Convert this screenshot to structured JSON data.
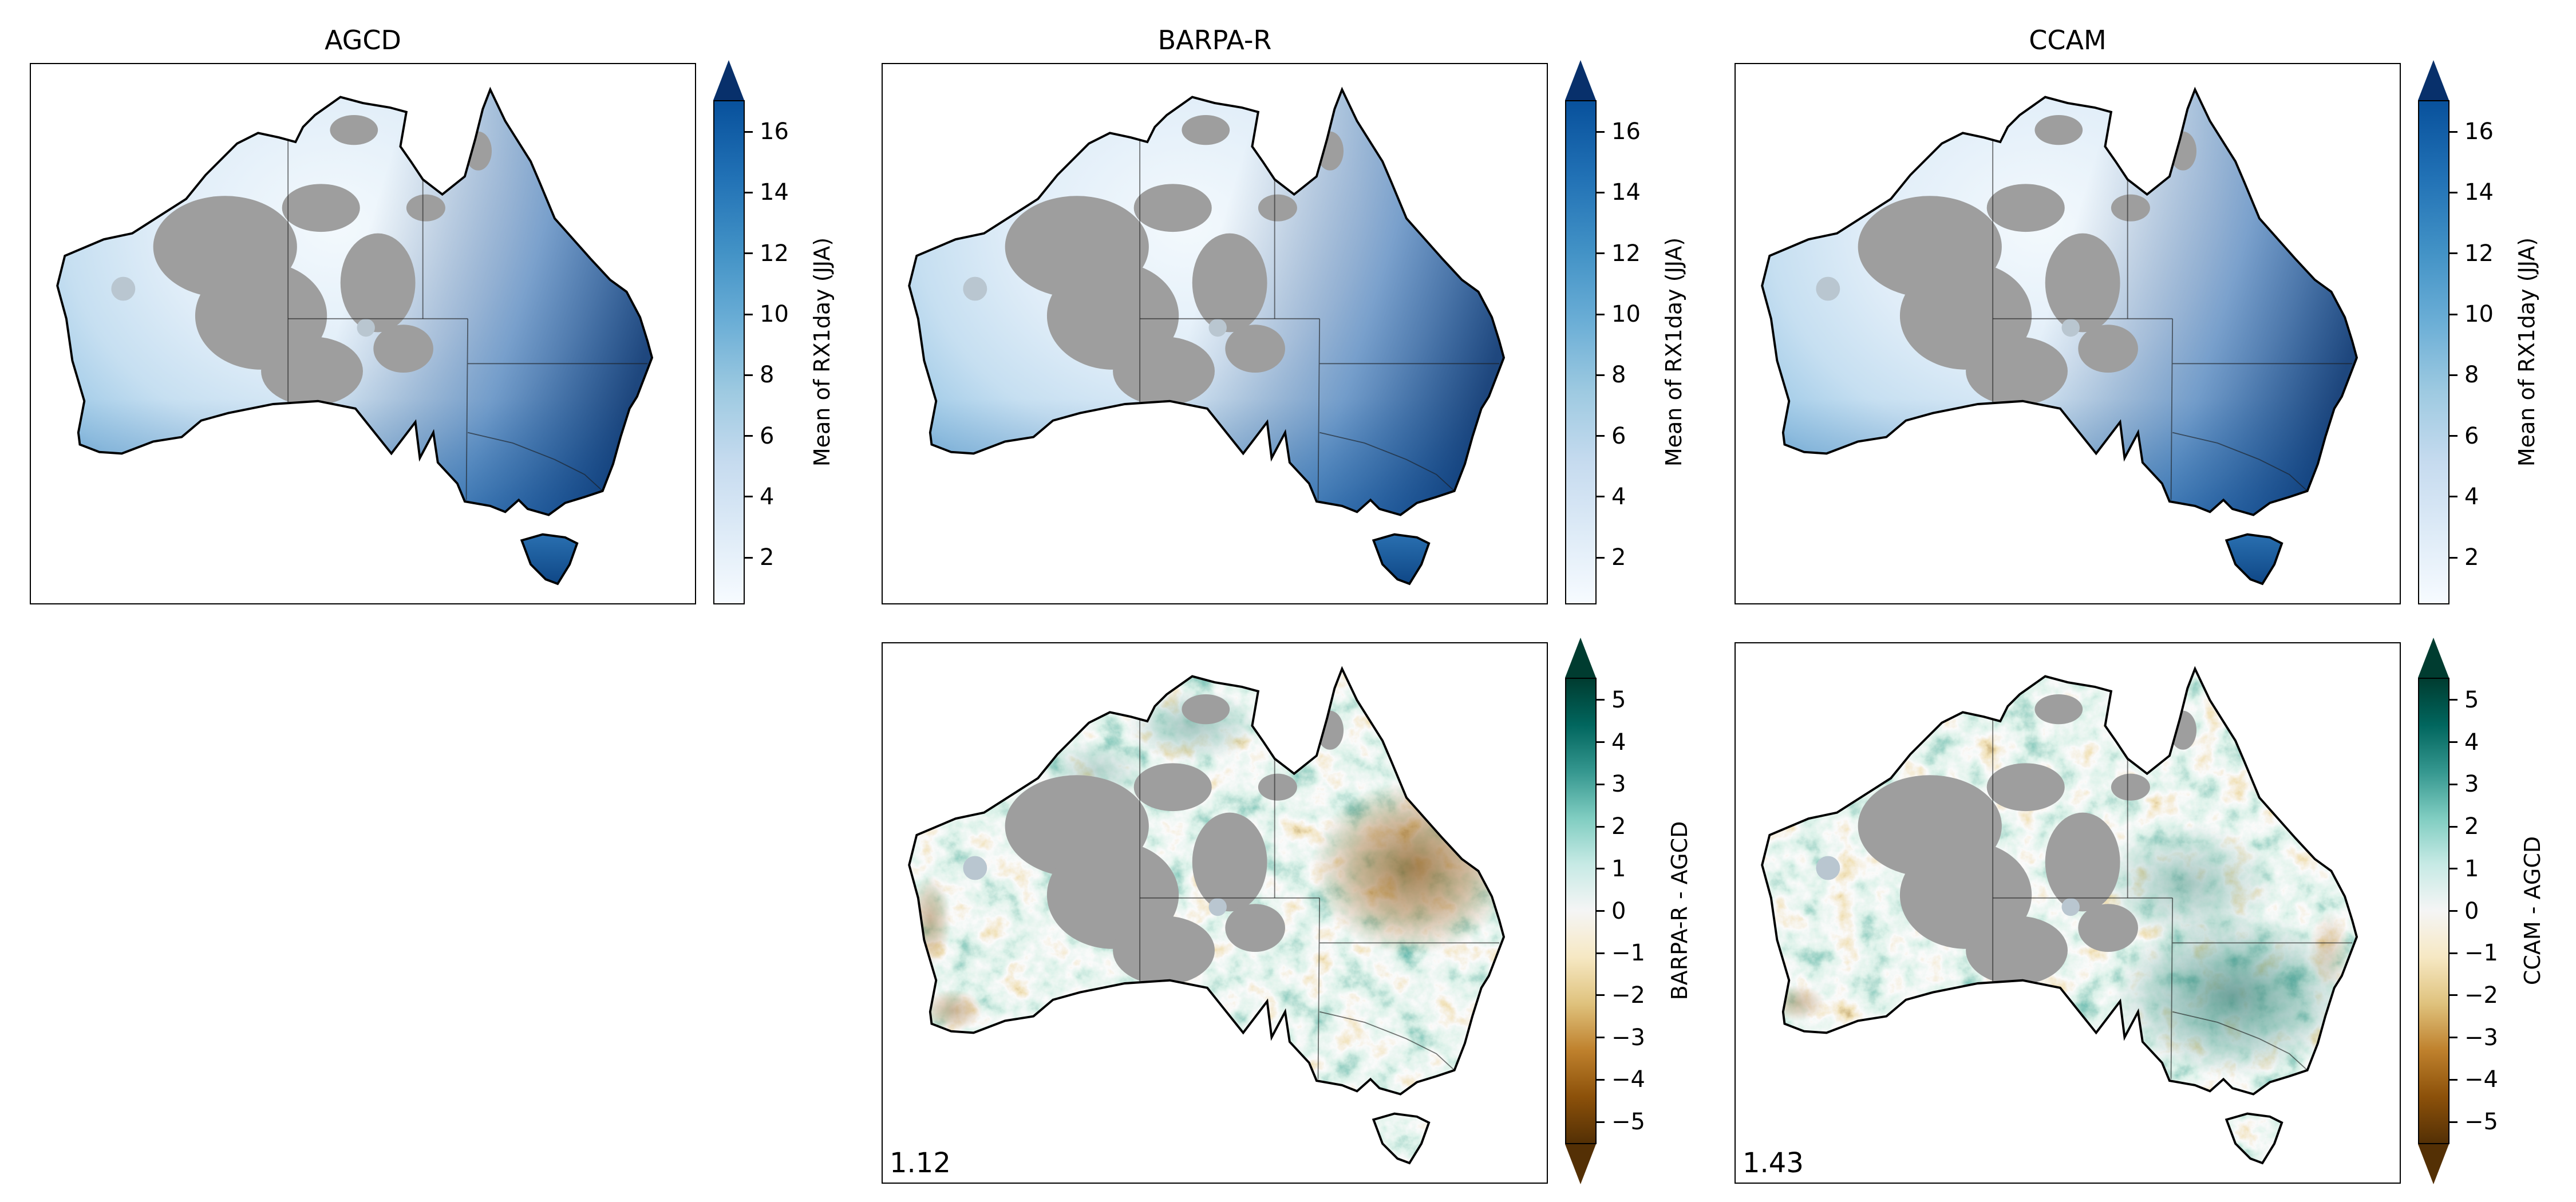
{
  "meta": {
    "figure_type": "climate model evaluation map grid",
    "region": "Australia"
  },
  "top_row": {
    "panels": [
      {
        "title": "AGCD"
      },
      {
        "title": "BARPA-R"
      },
      {
        "title": "CCAM"
      }
    ],
    "colorbar": {
      "label": "Mean of RX1day (JJA)",
      "vmin": 0.5,
      "vmax": 17,
      "extend": "max",
      "ticks": [
        {
          "label": "2",
          "value": 2
        },
        {
          "label": "4",
          "value": 4
        },
        {
          "label": "6",
          "value": 6
        },
        {
          "label": "8",
          "value": 8
        },
        {
          "label": "10",
          "value": 10
        },
        {
          "label": "12",
          "value": 12
        },
        {
          "label": "14",
          "value": 14
        },
        {
          "label": "16",
          "value": 16
        }
      ]
    }
  },
  "bottom_row": {
    "panels": [
      {
        "colorbar_label": "BARPA-R - AGCD",
        "stat": "1.12"
      },
      {
        "colorbar_label": "CCAM - AGCD",
        "stat": "1.43"
      }
    ],
    "colorbar": {
      "vmin": -5.5,
      "vmax": 5.5,
      "extend": "both",
      "ticks": [
        {
          "label": "−5",
          "value": -5
        },
        {
          "label": "−4",
          "value": -4
        },
        {
          "label": "−3",
          "value": -3
        },
        {
          "label": "−2",
          "value": -2
        },
        {
          "label": "−1",
          "value": -1
        },
        {
          "label": "0",
          "value": 0
        },
        {
          "label": "1",
          "value": 1
        },
        {
          "label": "2",
          "value": 2
        },
        {
          "label": "3",
          "value": 3
        },
        {
          "label": "4",
          "value": 4
        },
        {
          "label": "5",
          "value": 5
        }
      ]
    }
  },
  "colors": {
    "mask_gray": "#9e9e9e",
    "blues_low": "#f7fbff",
    "blues_high": "#08519c",
    "blues_extend": "#08306b",
    "brbg_neg_extend": "#543005",
    "brbg_pos_extend": "#003c30",
    "coastline": "#000000"
  },
  "chart_data": {
    "type": "heatmap",
    "layout": "2 rows x 3 columns of Australia maps; bottom-left cell empty",
    "region": "Australia (mainland and Tasmania), state borders drawn, data-void interior regions masked gray",
    "panels": [
      {
        "row": 1,
        "col": 1,
        "title": "AGCD",
        "variable": "Mean of RX1day (JJA)",
        "colormap": "Blues (sequential light-to-dark)",
        "colorbar_ticks": [
          2,
          4,
          6,
          8,
          10,
          12,
          14,
          16
        ],
        "colorbar_extend": "max",
        "pattern": "light blue (low values) in arid interior and north-center; darker blue toward west coast; darkest blue along east and southeast coasts and Tasmania"
      },
      {
        "row": 1,
        "col": 2,
        "title": "BARPA-R",
        "variable": "Mean of RX1day (JJA)",
        "colormap": "Blues (sequential light-to-dark)",
        "colorbar_ticks": [
          2,
          4,
          6,
          8,
          10,
          12,
          14,
          16
        ],
        "colorbar_extend": "max",
        "pattern": "same spatial pattern as AGCD, slightly wetter overall"
      },
      {
        "row": 1,
        "col": 3,
        "title": "CCAM",
        "variable": "Mean of RX1day (JJA)",
        "colormap": "Blues (sequential light-to-dark)",
        "colorbar_ticks": [
          2,
          4,
          6,
          8,
          10,
          12,
          14,
          16
        ],
        "colorbar_extend": "max",
        "pattern": "same spatial pattern as AGCD, slightly wetter overall"
      },
      {
        "row": 2,
        "col": 2,
        "title": "BARPA-R - AGCD",
        "variable": "difference of Mean of RX1day (JJA)",
        "colormap": "BrBG diverging (brown negative, white zero, teal-green positive)",
        "colorbar_ticks": [
          -5,
          -4,
          -3,
          -2,
          -1,
          0,
          1,
          2,
          3,
          4,
          5
        ],
        "colorbar_extend": "both",
        "annotation_value": 1.12,
        "pattern": "mostly mottled green (wet bias) across continent; strong brown (dry bias) region over eastern Queensland; brown fringes on southwest coast"
      },
      {
        "row": 2,
        "col": 3,
        "title": "CCAM - AGCD",
        "variable": "difference of Mean of RX1day (JJA)",
        "colormap": "BrBG diverging (brown negative, white zero, teal-green positive)",
        "colorbar_ticks": [
          -5,
          -4,
          -3,
          -2,
          -1,
          0,
          1,
          2,
          3,
          4,
          5
        ],
        "colorbar_extend": "both",
        "annotation_value": 1.43,
        "pattern": "mottled green (wet bias) over most of continent, strongest dark green in southeast; scattered brown specks in northeast and southwest"
      }
    ]
  }
}
